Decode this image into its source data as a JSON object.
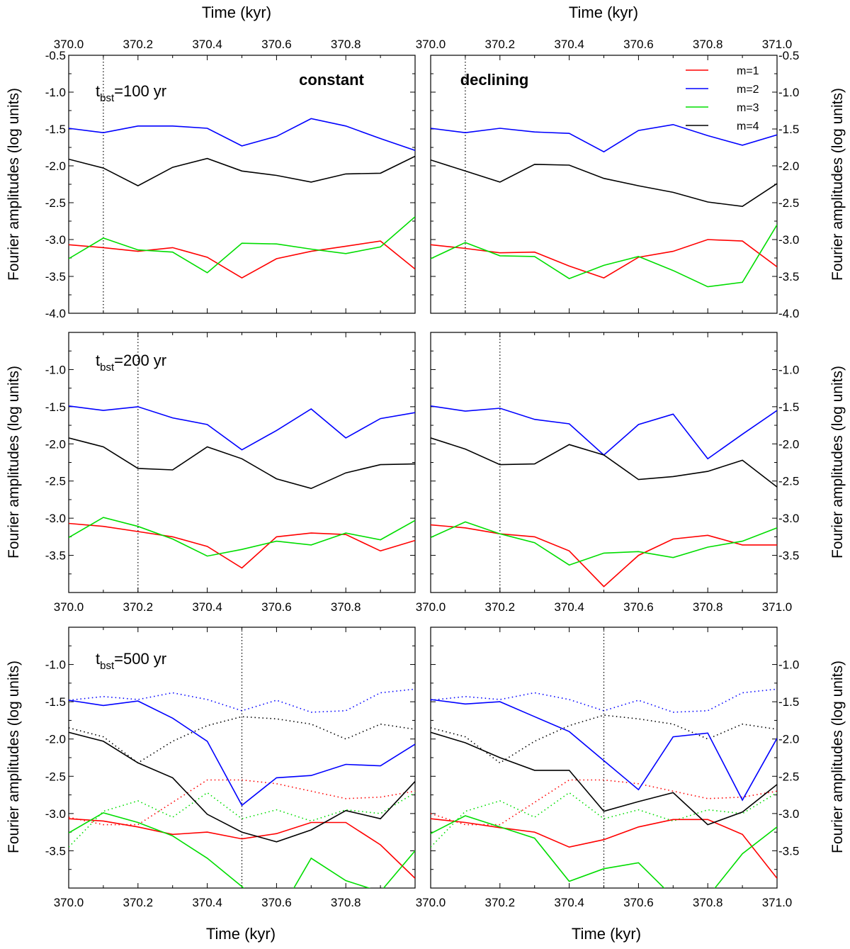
{
  "chart_data": {
    "type": "line",
    "x_axis": {
      "label": "Time (kyr)",
      "range": [
        370.0,
        371.0
      ],
      "ticks": [
        370.0,
        370.2,
        370.4,
        370.6,
        370.8,
        371.0
      ],
      "tick_labels": [
        "370.0",
        "370.2",
        "370.4",
        "370.6",
        "370.8",
        "371.0"
      ]
    },
    "y_axis": {
      "label": "Fourier amplitudes (log units)",
      "range": [
        -4.0,
        -0.5
      ],
      "ticks": [
        -4.0,
        -3.5,
        -3.0,
        -2.5,
        -2.0,
        -1.5,
        -1.0,
        -0.5
      ],
      "tick_labels": [
        "-4.0",
        "-3.5",
        "-3.0",
        "-2.5",
        "-2.0",
        "-1.5",
        "-1.0",
        "-0.5"
      ]
    },
    "columns": [
      "constant",
      "declining"
    ],
    "legend": [
      {
        "key": "m1",
        "label": "m=1",
        "color": "#ff0000"
      },
      {
        "key": "m2",
        "label": "m=2",
        "color": "#0000ff"
      },
      {
        "key": "m3",
        "label": "m=3",
        "color": "#00dd00"
      },
      {
        "key": "m4",
        "label": "m=4",
        "color": "#000000"
      }
    ],
    "x": [
      370.0,
      370.1,
      370.2,
      370.3,
      370.4,
      370.5,
      370.6,
      370.7,
      370.8,
      370.9,
      371.0
    ],
    "panels": [
      {
        "id": "r1c1",
        "row": 1,
        "col": 1,
        "label_t": "t",
        "label_sub": "bst",
        "label_rest": "=100 yr",
        "vline": 370.1,
        "series": {
          "m1": [
            -3.07,
            -3.11,
            -3.16,
            -3.11,
            -3.24,
            -3.52,
            -3.26,
            -3.16,
            -3.09,
            -3.02,
            -3.4
          ],
          "m2": [
            -1.49,
            -1.55,
            -1.46,
            -1.46,
            -1.49,
            -1.73,
            -1.6,
            -1.36,
            -1.46,
            -1.63,
            -1.79
          ],
          "m3": [
            -3.26,
            -2.98,
            -3.14,
            -3.17,
            -3.45,
            -3.05,
            -3.06,
            -3.13,
            -3.19,
            -3.1,
            -2.69
          ],
          "m4": [
            -1.91,
            -2.03,
            -2.27,
            -2.02,
            -1.9,
            -2.07,
            -2.13,
            -2.22,
            -2.11,
            -2.1,
            -1.87
          ]
        }
      },
      {
        "id": "r1c2",
        "row": 1,
        "col": 2,
        "vline": 370.1,
        "series": {
          "m1": [
            -3.07,
            -3.12,
            -3.18,
            -3.17,
            -3.36,
            -3.52,
            -3.24,
            -3.16,
            -3.0,
            -3.02,
            -3.37
          ],
          "m2": [
            -1.49,
            -1.55,
            -1.49,
            -1.54,
            -1.56,
            -1.81,
            -1.52,
            -1.44,
            -1.59,
            -1.72,
            -1.58
          ],
          "m3": [
            -3.26,
            -3.04,
            -3.22,
            -3.23,
            -3.53,
            -3.35,
            -3.23,
            -3.42,
            -3.64,
            -3.58,
            -2.8
          ],
          "m4": [
            -1.92,
            -2.07,
            -2.22,
            -1.98,
            -1.99,
            -2.17,
            -2.27,
            -2.36,
            -2.49,
            -2.55,
            -2.24
          ]
        }
      },
      {
        "id": "r2c1",
        "row": 2,
        "col": 1,
        "label_t": "t",
        "label_sub": "bst",
        "label_rest": "=200 yr",
        "vline": 370.2,
        "series": {
          "m1": [
            -3.07,
            -3.11,
            -3.18,
            -3.25,
            -3.38,
            -3.67,
            -3.25,
            -3.2,
            -3.22,
            -3.44,
            -3.3
          ],
          "m2": [
            -1.49,
            -1.55,
            -1.5,
            -1.65,
            -1.74,
            -2.08,
            -1.82,
            -1.53,
            -1.92,
            -1.66,
            -1.58
          ],
          "m3": [
            -3.26,
            -2.99,
            -3.11,
            -3.28,
            -3.51,
            -3.42,
            -3.31,
            -3.36,
            -3.2,
            -3.29,
            -3.03
          ],
          "m4": [
            -1.92,
            -2.04,
            -2.33,
            -2.35,
            -2.04,
            -2.2,
            -2.47,
            -2.6,
            -2.39,
            -2.28,
            -2.27
          ]
        }
      },
      {
        "id": "r2c2",
        "row": 2,
        "col": 2,
        "vline": 370.2,
        "series": {
          "m1": [
            -3.09,
            -3.13,
            -3.21,
            -3.25,
            -3.44,
            -3.92,
            -3.5,
            -3.28,
            -3.23,
            -3.36,
            -3.36
          ],
          "m2": [
            -1.49,
            -1.56,
            -1.52,
            -1.67,
            -1.73,
            -2.15,
            -1.74,
            -1.6,
            -2.2,
            -1.87,
            -1.55
          ],
          "m3": [
            -3.26,
            -3.05,
            -3.21,
            -3.33,
            -3.63,
            -3.47,
            -3.45,
            -3.53,
            -3.39,
            -3.31,
            -3.13
          ],
          "m4": [
            -1.92,
            -2.07,
            -2.28,
            -2.27,
            -2.01,
            -2.15,
            -2.48,
            -2.44,
            -2.37,
            -2.22,
            -2.58
          ]
        }
      },
      {
        "id": "r3c1",
        "row": 3,
        "col": 1,
        "label_t": "t",
        "label_sub": "bst",
        "label_rest": "=500 yr",
        "vline": 370.5,
        "series": {
          "m1": [
            -3.07,
            -3.1,
            -3.18,
            -3.28,
            -3.25,
            -3.34,
            -3.27,
            -3.12,
            -3.12,
            -3.42,
            -3.87
          ],
          "m2": [
            -1.48,
            -1.55,
            -1.49,
            -1.72,
            -2.03,
            -2.89,
            -2.52,
            -2.49,
            -2.34,
            -2.36,
            -2.07
          ],
          "m3": [
            -3.26,
            -2.99,
            -3.12,
            -3.3,
            -3.6,
            -3.98,
            -4.4,
            -3.6,
            -3.9,
            -4.05,
            -3.5
          ],
          "m4": [
            -1.91,
            -2.03,
            -2.32,
            -2.52,
            -3.01,
            -3.25,
            -3.38,
            -3.22,
            -2.96,
            -3.07,
            -2.57
          ]
        },
        "reference": {
          "m1": [
            -3.05,
            -3.15,
            -3.15,
            -2.85,
            -2.55,
            -2.55,
            -2.6,
            -2.7,
            -2.8,
            -2.78,
            -2.7
          ],
          "m2": [
            -1.48,
            -1.43,
            -1.47,
            -1.38,
            -1.47,
            -1.62,
            -1.48,
            -1.64,
            -1.62,
            -1.38,
            -1.33
          ],
          "m3": [
            -3.45,
            -2.97,
            -2.83,
            -3.05,
            -2.72,
            -3.07,
            -2.95,
            -3.1,
            -2.95,
            -3.0,
            -2.72
          ],
          "m4": [
            -1.85,
            -1.97,
            -2.32,
            -2.03,
            -1.82,
            -1.7,
            -1.73,
            -1.8,
            -2.0,
            -1.8,
            -1.87
          ]
        }
      },
      {
        "id": "r3c2",
        "row": 3,
        "col": 2,
        "vline": 370.5,
        "series": {
          "m1": [
            -3.07,
            -3.12,
            -3.19,
            -3.25,
            -3.45,
            -3.35,
            -3.18,
            -3.08,
            -3.08,
            -3.28,
            -3.87
          ],
          "m2": [
            -1.47,
            -1.53,
            -1.5,
            -1.7,
            -1.9,
            -2.29,
            -2.68,
            -1.97,
            -1.92,
            -2.82,
            -1.99
          ],
          "m3": [
            -3.27,
            -3.03,
            -3.18,
            -3.33,
            -3.91,
            -3.74,
            -3.66,
            -4.12,
            -4.12,
            -3.54,
            -3.18
          ],
          "m4": [
            -1.91,
            -2.05,
            -2.25,
            -2.42,
            -2.42,
            -2.97,
            -2.84,
            -2.72,
            -3.15,
            -2.98,
            -2.61
          ]
        },
        "reference": {
          "m1": [
            -3.0,
            -3.15,
            -3.15,
            -2.85,
            -2.55,
            -2.55,
            -2.6,
            -2.7,
            -2.8,
            -2.78,
            -2.7
          ],
          "m2": [
            -1.48,
            -1.43,
            -1.47,
            -1.38,
            -1.47,
            -1.62,
            -1.48,
            -1.64,
            -1.62,
            -1.38,
            -1.33
          ],
          "m3": [
            -3.45,
            -2.97,
            -2.83,
            -3.05,
            -2.72,
            -3.07,
            -2.95,
            -3.1,
            -2.95,
            -3.0,
            -2.72
          ],
          "m4": [
            -1.85,
            -1.97,
            -2.32,
            -2.03,
            -1.82,
            -1.68,
            -1.73,
            -1.8,
            -2.0,
            -1.8,
            -1.87
          ]
        }
      }
    ]
  },
  "labels": {
    "top_xlabel": "Time (kyr)",
    "bottom_xlabel": "Time (kyr)",
    "ylabel": "Fourier amplitudes (log units)",
    "title_constant": "constant",
    "title_declining": "declining"
  },
  "colors": {
    "m1": "#ff0000",
    "m2": "#0000ff",
    "m3": "#00dd00",
    "m4": "#000000"
  }
}
